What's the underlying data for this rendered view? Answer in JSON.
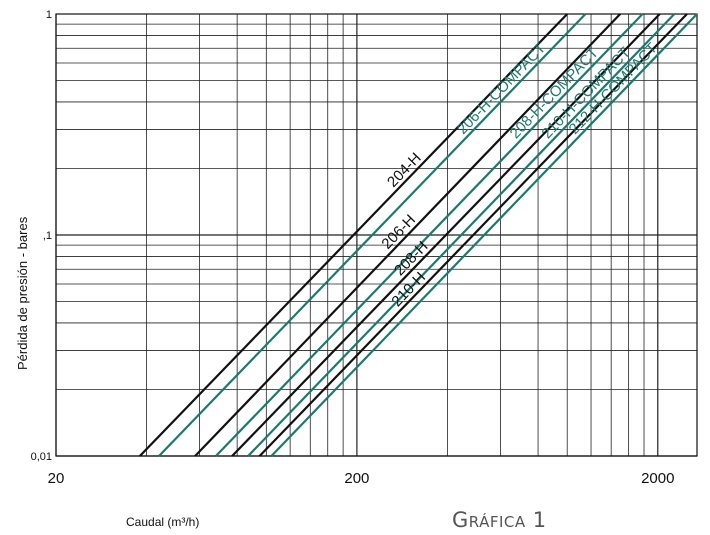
{
  "chart_data": {
    "type": "line",
    "x_scale": "log",
    "y_scale": "log",
    "xlim": [
      20,
      2700
    ],
    "ylim": [
      0.01,
      1
    ],
    "x_ticks": [
      "20",
      "200",
      "2000"
    ],
    "y_ticks": [
      "0,01",
      ",1",
      "1"
    ],
    "xlabel": "Caudal  (m³/h)",
    "ylabel": "Pérdida de presión - bares",
    "grid": true,
    "colors": {
      "black": "#111111",
      "green": "#1a7a6e"
    },
    "series": [
      {
        "name": "204-H",
        "color": "black",
        "x": [
          38,
          1000
        ],
        "y": [
          0.01,
          1
        ]
      },
      {
        "name": "206-H-COMPACT",
        "color": "green",
        "x": [
          44,
          1150
        ],
        "y": [
          0.01,
          1
        ]
      },
      {
        "name": "206-H",
        "color": "black",
        "x": [
          58,
          1500
        ],
        "y": [
          0.01,
          1
        ]
      },
      {
        "name": "208-H-COMPACT",
        "color": "green",
        "x": [
          68,
          1780
        ],
        "y": [
          0.01,
          1
        ]
      },
      {
        "name": "208-H",
        "color": "black",
        "x": [
          77,
          2030
        ],
        "y": [
          0.01,
          1
        ]
      },
      {
        "name": "210-H-COMPACT",
        "color": "green",
        "x": [
          87,
          2270
        ],
        "y": [
          0.01,
          1
        ]
      },
      {
        "name": "210-H",
        "color": "black",
        "x": [
          95,
          2500
        ],
        "y": [
          0.01,
          1
        ]
      },
      {
        "name": "212-H-COMPACT",
        "color": "green",
        "x": [
          104,
          2700
        ],
        "y": [
          0.01,
          1
        ]
      }
    ]
  },
  "caption": "Gráfica 1"
}
